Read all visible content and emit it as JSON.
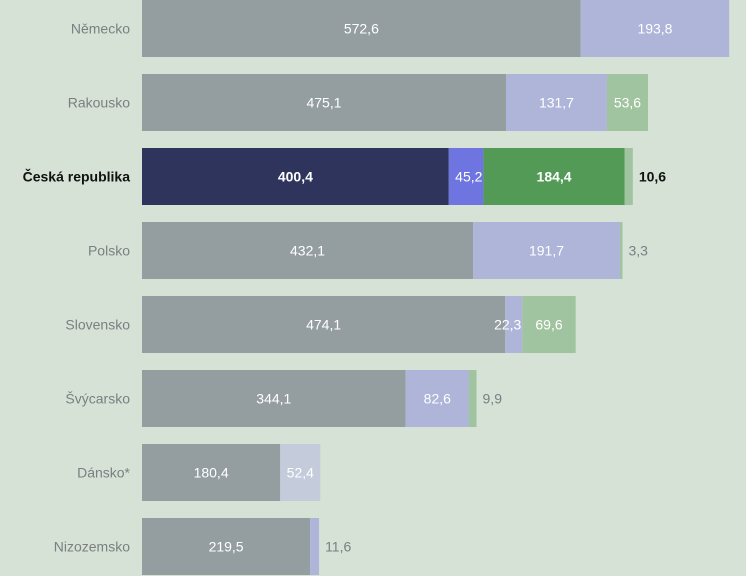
{
  "chart_data": {
    "type": "bar",
    "orientation": "horizontal",
    "stacked": true,
    "highlight": "Česká republika",
    "colors": {
      "background": "#d6e2d6",
      "grey": "#949ea1",
      "lavender": "#aeb5d9",
      "lightgreen": "#a0c49f",
      "darknavy": "#2f345c",
      "purple": "#6f75e0",
      "green": "#529a56",
      "label_muted": "#7a7f82",
      "label_on_dark": "#ffffff",
      "label_highlight": "#111111"
    },
    "categories": [
      "Německo",
      "Rakousko",
      "Česká republika",
      "Polsko",
      "Slovensko",
      "Švýcarsko",
      "Dánsko*",
      "Nizozemsko"
    ],
    "rows": [
      {
        "category": "Německo",
        "segments": [
          {
            "value": 572.6,
            "label": "572,6"
          },
          {
            "value": 193.8,
            "label": "193,8"
          }
        ]
      },
      {
        "category": "Rakousko",
        "segments": [
          {
            "value": 475.1,
            "label": "475,1"
          },
          {
            "value": 131.7,
            "label": "131,7"
          },
          {
            "value": 53.6,
            "label": "53,6"
          }
        ]
      },
      {
        "category": "Česká republika",
        "segments": [
          {
            "value": 400.4,
            "label": "400,4"
          },
          {
            "value": 45.2,
            "label": "45,2"
          },
          {
            "value": 184.4,
            "label": "184,4"
          },
          {
            "value": 10.6,
            "label": "10,6"
          }
        ]
      },
      {
        "category": "Polsko",
        "segments": [
          {
            "value": 432.1,
            "label": "432,1"
          },
          {
            "value": 191.7,
            "label": "191,7"
          },
          {
            "value": 3.3,
            "label": "3,3"
          }
        ]
      },
      {
        "category": "Slovensko",
        "segments": [
          {
            "value": 474.1,
            "label": "474,1"
          },
          {
            "value": 22.3,
            "label": "22,3"
          },
          {
            "value": 69.6,
            "label": "69,6"
          }
        ]
      },
      {
        "category": "Švýcarsko",
        "segments": [
          {
            "value": 344.1,
            "label": "344,1"
          },
          {
            "value": 82.6,
            "label": "82,6"
          },
          {
            "value": 9.9,
            "label": "9,9"
          }
        ]
      },
      {
        "category": "Dánsko*",
        "segments": [
          {
            "value": 180.4,
            "label": "180,4"
          },
          {
            "value": 52.4,
            "label": "52,4"
          }
        ]
      },
      {
        "category": "Nizozemsko",
        "segments": [
          {
            "value": 219.5,
            "label": "219,5"
          },
          {
            "value": 11.6,
            "label": "11,6"
          }
        ]
      }
    ]
  }
}
